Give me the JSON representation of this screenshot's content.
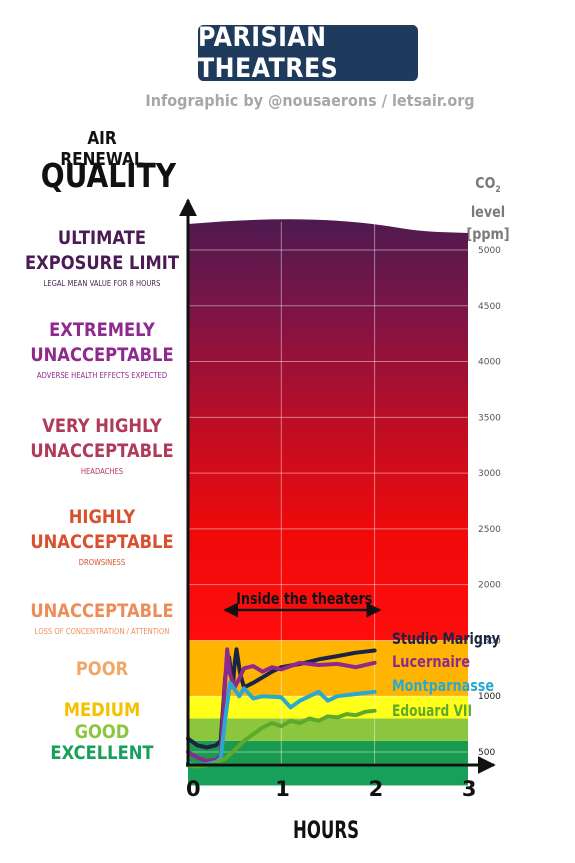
{
  "header": {
    "title": "PARISIAN THEATRES",
    "subtitle": "Infographic by @nousaerons / letsair.org"
  },
  "left_panel": {
    "heading_line1": "AIR RENEWAL",
    "heading_line2": "QUALITY",
    "categories": [
      {
        "line1": "ULTIMATE",
        "line2": "EXPOSURE LIMIT",
        "note": "LEGAL MEAN VALUE FOR 8 HOURS",
        "color": "#4a1b55"
      },
      {
        "line1": "EXTREMELY",
        "line2": "UNACCEPTABLE",
        "note": "ADVERSE HEALTH EFFECTS EXPECTED",
        "color": "#8e2a8e"
      },
      {
        "line1": "VERY HIGHLY",
        "line2": "UNACCEPTABLE",
        "note": "HEADACHES",
        "color": "#b03a5a"
      },
      {
        "line1": "HIGHLY",
        "line2": "UNACCEPTABLE",
        "note": "DROWSINESS",
        "color": "#d9502f"
      },
      {
        "line1": "UNACCEPTABLE",
        "line2": "",
        "note": "LOSS OF CONCENTRATION / ATTENTION",
        "color": "#ee8d5a"
      },
      {
        "line1": "POOR",
        "line2": "",
        "note": "",
        "color": "#f0a868"
      },
      {
        "line1": "MEDIUM",
        "line2": "",
        "note": "",
        "color": "#f2c200"
      },
      {
        "line1": "GOOD",
        "line2": "",
        "note": "",
        "color": "#8cc63f"
      },
      {
        "line1": "EXCELLENT",
        "line2": "",
        "note": "",
        "color": "#16a05a"
      }
    ]
  },
  "chart_data": {
    "type": "line",
    "xlabel": "HOURS",
    "ylabel_main": "CO",
    "ylabel_sub": "2",
    "ylabel_rest": " level",
    "ylabel_unit": "[ppm]",
    "xlim": [
      0,
      3
    ],
    "ylim": [
      0,
      5500
    ],
    "x_ticks": [
      "0",
      "1",
      "2",
      "3"
    ],
    "y_ticks": [
      "500",
      "1000",
      "1500",
      "2000",
      "2500",
      "3000",
      "3500",
      "4000",
      "4500",
      "5000"
    ],
    "annotation": "Inside the theaters",
    "annotation_range": [
      0.35,
      2.1
    ],
    "bands": [
      {
        "from": 0,
        "to": 200,
        "color": "#6cc04a"
      },
      {
        "from": 200,
        "to": 400,
        "color": "#16a05a"
      },
      {
        "from": 400,
        "to": 600,
        "color": "#1a9a4f"
      },
      {
        "from": 600,
        "to": 800,
        "color": "#8cc63f"
      },
      {
        "from": 800,
        "to": 1000,
        "color": "#ffff1a"
      },
      {
        "from": 1000,
        "to": 1500,
        "color": "#ffb400"
      }
    ],
    "series": [
      {
        "name": "Studio Marigny",
        "color": "#1c2446",
        "x": [
          0,
          0.1,
          0.2,
          0.3,
          0.35,
          0.4,
          0.44,
          0.48,
          0.5,
          0.52,
          0.56,
          0.6,
          0.7,
          0.8,
          0.9,
          1.0,
          1.2,
          1.4,
          1.6,
          1.8,
          2.0
        ],
        "y": [
          620,
          560,
          540,
          560,
          600,
          1180,
          1350,
          1080,
          1300,
          1420,
          1200,
          1080,
          1120,
          1170,
          1220,
          1260,
          1290,
          1330,
          1360,
          1390,
          1410
        ]
      },
      {
        "name": "Lucernaire",
        "color": "#8e2a8e",
        "x": [
          0,
          0.1,
          0.2,
          0.3,
          0.35,
          0.4,
          0.42,
          0.45,
          0.5,
          0.55,
          0.6,
          0.7,
          0.8,
          0.9,
          1.0,
          1.2,
          1.4,
          1.6,
          1.8,
          2.0
        ],
        "y": [
          500,
          450,
          420,
          430,
          470,
          1150,
          1420,
          1200,
          1080,
          1160,
          1250,
          1270,
          1220,
          1260,
          1240,
          1300,
          1280,
          1290,
          1260,
          1300
        ]
      },
      {
        "name": "Montparnasse",
        "color": "#2aa8d0",
        "x": [
          0,
          0.1,
          0.2,
          0.3,
          0.35,
          0.4,
          0.45,
          0.5,
          0.55,
          0.6,
          0.7,
          0.8,
          1.0,
          1.1,
          1.2,
          1.4,
          1.5,
          1.6,
          1.8,
          2.0
        ],
        "y": [
          400,
          380,
          390,
          410,
          440,
          800,
          1120,
          1060,
          1000,
          1070,
          980,
          1000,
          990,
          900,
          960,
          1040,
          960,
          1000,
          1020,
          1040
        ]
      },
      {
        "name": "Edouard VII",
        "color": "#5ea82a",
        "x": [
          0,
          0.1,
          0.2,
          0.3,
          0.4,
          0.5,
          0.6,
          0.7,
          0.8,
          0.9,
          1.0,
          1.1,
          1.2,
          1.3,
          1.4,
          1.5,
          1.6,
          1.7,
          1.8,
          1.9,
          2.0
        ],
        "y": [
          380,
          370,
          380,
          400,
          440,
          520,
          600,
          660,
          720,
          760,
          730,
          780,
          760,
          800,
          780,
          820,
          810,
          840,
          830,
          860,
          870
        ]
      }
    ]
  }
}
